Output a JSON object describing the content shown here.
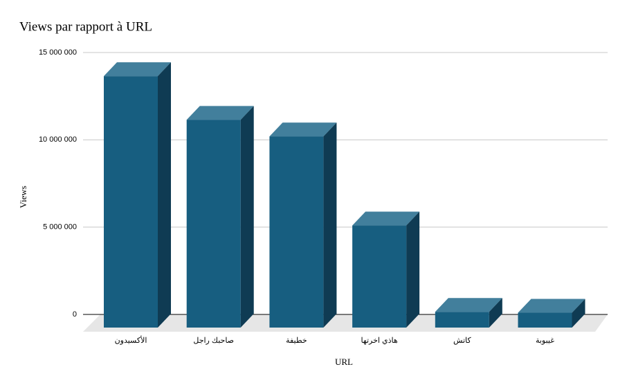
{
  "chart_data": {
    "type": "bar3d",
    "title": "Views par rapport à URL",
    "x_label": "URL",
    "y_label": "Views",
    "categories": [
      "الأكسيدون",
      "صاحبك راجل",
      "خطيفة",
      "هاذي اخرتها",
      "كاتش",
      "غيبوبة"
    ],
    "values": [
      14400000,
      11900000,
      10950000,
      5850000,
      900000,
      850000
    ],
    "color": "#175e80",
    "ylim": [
      0,
      15000000
    ],
    "yticks": [
      0,
      {
        "value": 5000000,
        "label": "5 000 000"
      },
      {
        "value": 10000000,
        "label": "10 000 000"
      },
      {
        "value": 15000000,
        "label": "15 000 000"
      }
    ],
    "grid": true
  }
}
